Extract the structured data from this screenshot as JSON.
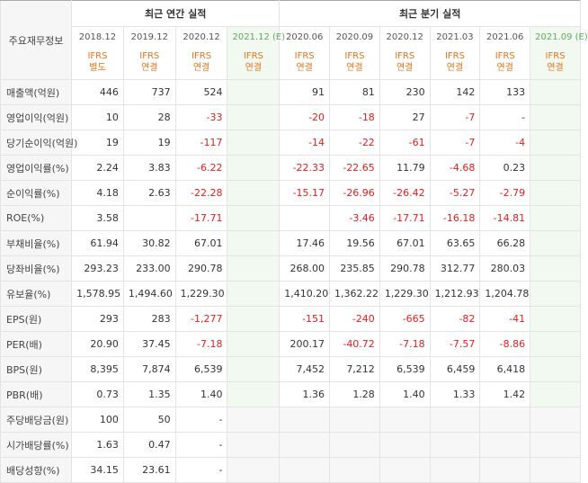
{
  "header": {
    "label_col": "주요재무정보",
    "annual_title": "최근 연간 실적",
    "quarter_title": "최근 분기 실적"
  },
  "columns": [
    {
      "date": "2018.12",
      "ifrs": "IFRS",
      "basis": "별도",
      "est": false
    },
    {
      "date": "2019.12",
      "ifrs": "IFRS",
      "basis": "연결",
      "est": false
    },
    {
      "date": "2020.12",
      "ifrs": "IFRS",
      "basis": "연결",
      "est": false
    },
    {
      "date": "2021.12 (E)",
      "ifrs": "IFRS",
      "basis": "연결",
      "est": true
    },
    {
      "date": "2020.06",
      "ifrs": "IFRS",
      "basis": "연결",
      "est": false
    },
    {
      "date": "2020.09",
      "ifrs": "IFRS",
      "basis": "연결",
      "est": false
    },
    {
      "date": "2020.12",
      "ifrs": "IFRS",
      "basis": "연결",
      "est": false
    },
    {
      "date": "2021.03",
      "ifrs": "IFRS",
      "basis": "연결",
      "est": false
    },
    {
      "date": "2021.06",
      "ifrs": "IFRS",
      "basis": "연결",
      "est": false
    },
    {
      "date": "2021.09 (E)",
      "ifrs": "IFRS",
      "basis": "연결",
      "est": true
    }
  ],
  "rows": [
    {
      "label": "매출액(억원)",
      "group_start": false,
      "values": [
        "446",
        "737",
        "524",
        "",
        "91",
        "81",
        "230",
        "142",
        "133",
        ""
      ]
    },
    {
      "label": "영업이익(억원)",
      "group_start": false,
      "values": [
        "10",
        "28",
        "-33",
        "",
        "-20",
        "-18",
        "27",
        "-7",
        "-",
        ""
      ]
    },
    {
      "label": "당기순이익(억원)",
      "group_start": false,
      "values": [
        "19",
        "19",
        "-117",
        "",
        "-14",
        "-22",
        "-61",
        "-7",
        "-4",
        ""
      ]
    },
    {
      "label": "영업이익률(%)",
      "group_start": true,
      "values": [
        "2.24",
        "3.83",
        "-6.22",
        "",
        "-22.33",
        "-22.65",
        "11.79",
        "-4.68",
        "0.23",
        ""
      ]
    },
    {
      "label": "순이익률(%)",
      "group_start": false,
      "values": [
        "4.18",
        "2.63",
        "-22.28",
        "",
        "-15.17",
        "-26.96",
        "-26.42",
        "-5.27",
        "-2.79",
        ""
      ]
    },
    {
      "label": "ROE(%)",
      "group_start": false,
      "values": [
        "3.58",
        "",
        "-17.71",
        "",
        "",
        "-3.46",
        "-17.71",
        "-16.18",
        "-14.81",
        ""
      ]
    },
    {
      "label": "부채비율(%)",
      "group_start": true,
      "values": [
        "61.94",
        "30.82",
        "67.01",
        "",
        "17.46",
        "19.56",
        "67.01",
        "63.65",
        "66.28",
        ""
      ]
    },
    {
      "label": "당좌비율(%)",
      "group_start": false,
      "values": [
        "293.23",
        "233.00",
        "290.78",
        "",
        "268.00",
        "235.85",
        "290.78",
        "312.77",
        "280.03",
        ""
      ]
    },
    {
      "label": "유보율(%)",
      "group_start": false,
      "values": [
        "1,578.95",
        "1,494.60",
        "1,229.30",
        "",
        "1,410.20",
        "1,362.22",
        "1,229.30",
        "1,212.93",
        "1,204.78",
        ""
      ]
    },
    {
      "label": "EPS(원)",
      "group_start": true,
      "values": [
        "293",
        "283",
        "-1,277",
        "",
        "-151",
        "-240",
        "-665",
        "-82",
        "-41",
        ""
      ]
    },
    {
      "label": "PER(배)",
      "group_start": false,
      "values": [
        "20.90",
        "37.45",
        "-7.18",
        "",
        "200.17",
        "-40.72",
        "-7.18",
        "-7.57",
        "-8.86",
        ""
      ]
    },
    {
      "label": "BPS(원)",
      "group_start": false,
      "values": [
        "8,395",
        "7,874",
        "6,539",
        "",
        "7,452",
        "7,212",
        "6,539",
        "6,459",
        "6,418",
        ""
      ]
    },
    {
      "label": "PBR(배)",
      "group_start": false,
      "values": [
        "0.73",
        "1.35",
        "1.40",
        "",
        "1.36",
        "1.28",
        "1.40",
        "1.33",
        "1.42",
        ""
      ]
    },
    {
      "label": "주당배당금(원)",
      "group_start": true,
      "quarter_empty": true,
      "values": [
        "100",
        "50",
        "-",
        "",
        "",
        "",
        "",
        "",
        "",
        ""
      ]
    },
    {
      "label": "시가배당률(%)",
      "group_start": false,
      "quarter_empty": true,
      "values": [
        "1.63",
        "0.47",
        "-",
        "",
        "",
        "",
        "",
        "",
        "",
        ""
      ]
    },
    {
      "label": "배당성향(%)",
      "group_start": false,
      "quarter_empty": true,
      "values": [
        "34.15",
        "23.61",
        "-",
        "",
        "",
        "",
        "",
        "",
        "",
        ""
      ]
    }
  ]
}
